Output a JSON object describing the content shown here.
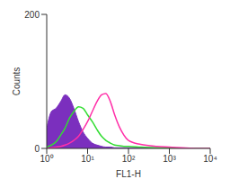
{
  "chart_data": {
    "type": "line",
    "x_label": "FL1-H",
    "y_label": "Counts",
    "log": "x",
    "grid": false,
    "xlim": [
      1,
      10000
    ],
    "xticks": [
      {
        "value": 1,
        "label": "10⁰"
      },
      {
        "value": 10,
        "label": "10¹"
      },
      {
        "value": 100,
        "label": "10²"
      },
      {
        "value": 1000,
        "label": "10³"
      },
      {
        "value": 10000,
        "label": "10⁴"
      }
    ],
    "ylim": [
      0,
      200
    ],
    "yticks": [
      0,
      200
    ],
    "x": [
      1,
      1.3,
      1.7,
      2.2,
      2.8,
      3.6,
      4.6,
      6,
      7.7,
      10,
      13,
      17,
      22,
      28,
      36,
      46,
      60,
      77,
      100,
      200,
      500,
      1000,
      2000,
      5000,
      10000
    ],
    "series": [
      {
        "type": "area",
        "color": "#7b2fbe",
        "values": [
          30,
          55,
          60,
          70,
          80,
          75,
          60,
          40,
          25,
          15,
          8,
          5,
          3,
          2,
          2,
          1,
          1,
          1,
          1,
          1,
          1,
          0,
          0,
          0,
          0
        ]
      },
      {
        "type": "line",
        "color": "#33dd33",
        "values": [
          2,
          5,
          10,
          20,
          30,
          45,
          55,
          62,
          60,
          50,
          40,
          28,
          18,
          12,
          8,
          5,
          4,
          3,
          3,
          2,
          1,
          1,
          0,
          0,
          0
        ]
      },
      {
        "type": "line",
        "color": "#ff2fa8",
        "values": [
          0,
          1,
          2,
          3,
          5,
          8,
          12,
          18,
          28,
          40,
          55,
          70,
          80,
          82,
          70,
          50,
          32,
          20,
          12,
          6,
          3,
          2,
          1,
          0,
          0
        ]
      }
    ]
  }
}
